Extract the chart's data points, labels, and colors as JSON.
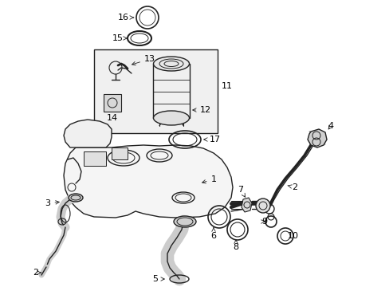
{
  "background_color": "#ffffff",
  "line_color": "#222222",
  "fig_width": 4.89,
  "fig_height": 3.6,
  "dpi": 100
}
